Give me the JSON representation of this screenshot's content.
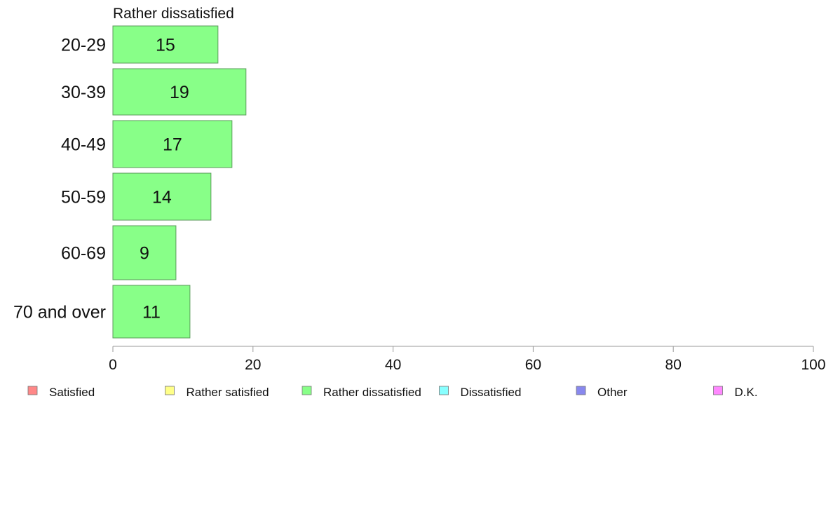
{
  "chart_data": {
    "type": "bar",
    "orientation": "horizontal",
    "title": "Rather dissatisfied",
    "categories": [
      "20-29",
      "30-39",
      "40-49",
      "50-59",
      "60-69",
      "70 and over"
    ],
    "series": [
      {
        "name": "Rather dissatisfied",
        "values": [
          15,
          19,
          17,
          14,
          9,
          11
        ],
        "color": "#88ff88"
      }
    ],
    "xlim": [
      0,
      100
    ],
    "xticks": [
      0,
      20,
      40,
      60,
      80,
      100
    ],
    "grid": false,
    "legend_position": "bottom",
    "legend": [
      {
        "label": "Satisfied",
        "color": "#ff8888"
      },
      {
        "label": "Rather satisfied",
        "color": "#ffff88"
      },
      {
        "label": "Rather dissatisfied",
        "color": "#88ff88"
      },
      {
        "label": "Dissatisfied",
        "color": "#88ffff"
      },
      {
        "label": "Other",
        "color": "#8888ee"
      },
      {
        "label": "D.K.",
        "color": "#ff88ff"
      }
    ]
  }
}
